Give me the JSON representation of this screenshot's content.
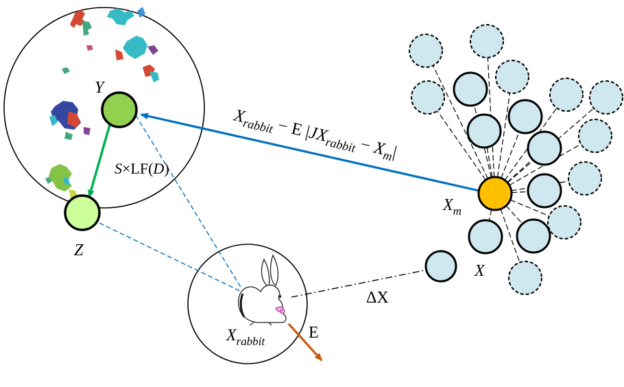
{
  "labels": {
    "y_point": "Y",
    "z_point": "Z",
    "levy_step": {
      "s": "S",
      "times": "×LF(",
      "d": "D",
      "close": ")"
    },
    "best_position": {
      "base": "X",
      "sub": "m"
    },
    "hawk_position": "X",
    "rabbit_position": {
      "base": "X",
      "sub": "rabbit"
    },
    "escape_energy": "E",
    "delta_x": "ΔX",
    "formula": {
      "x1": "X",
      "sub1": "rabbit",
      "minus1": " − E |",
      "j": "J",
      "x2": "X",
      "sub2": "rabbit",
      "minus2": " − ",
      "x3": "X",
      "sub3": "m",
      "bar": "|"
    }
  },
  "colors": {
    "hawk_fill": "#cfe7ef",
    "best_fill": "#ffc000",
    "y_fill": "#92d050",
    "z_fill": "#ccff99",
    "arrow_blue": "#0070c0",
    "arrow_green": "#00b050",
    "arrow_orange": "#c55a11",
    "dashed_blue": "#0070c0"
  },
  "icons": [
    "rabbit-icon",
    "levy-flight-trails"
  ]
}
